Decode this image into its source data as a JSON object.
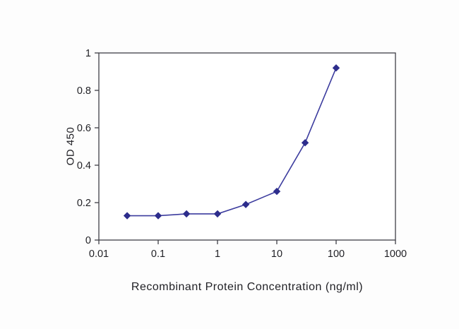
{
  "chart_data": {
    "type": "line",
    "title": "",
    "xlabel": "Recombinant Protein Concentration (ng/ml)",
    "ylabel": "OD 450",
    "x_scale": "log",
    "xlim": [
      0.01,
      1000
    ],
    "ylim": [
      0,
      1
    ],
    "x_ticks": [
      0.01,
      0.1,
      1,
      10,
      100,
      1000
    ],
    "x_tick_labels": [
      "0.01",
      "0.1",
      "1",
      "10",
      "100",
      "1000"
    ],
    "y_ticks": [
      0,
      0.2,
      0.4,
      0.6,
      0.8,
      1
    ],
    "y_tick_labels": [
      "0",
      "0.2",
      "0.4",
      "0.6",
      "0.8",
      "1"
    ],
    "grid": false,
    "legend": "none",
    "marker": "diamond",
    "series": [
      {
        "name": "OD 450",
        "x": [
          0.03,
          0.1,
          0.3,
          1,
          3,
          10,
          30,
          100
        ],
        "y": [
          0.13,
          0.13,
          0.14,
          0.14,
          0.19,
          0.26,
          0.52,
          0.92
        ]
      }
    ],
    "colors": {
      "line": "#3c3c9e",
      "marker": "#2d2d8c",
      "axis": "#3f3f46",
      "text": "#1f1f24",
      "background": "#ffffff"
    }
  }
}
